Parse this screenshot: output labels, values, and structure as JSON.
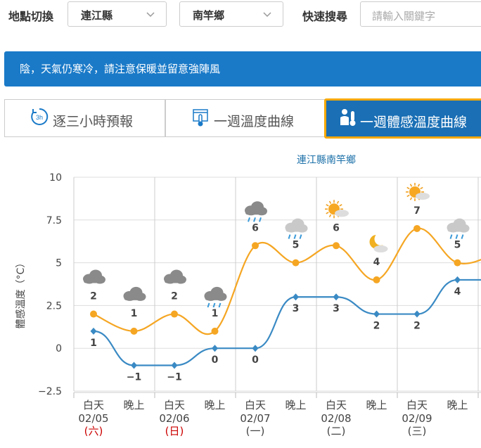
{
  "location": {
    "label": "地點切換",
    "county": "連江縣",
    "township": "南竿鄉"
  },
  "search": {
    "label": "快速搜尋",
    "placeholder": "請輸入關鍵字"
  },
  "alert": {
    "text": "陰，天氣仍寒冷，請注意保暖並留意強陣風"
  },
  "tabs": [
    {
      "label": "逐三小時預報",
      "icon": "clock-3h-icon",
      "active": false
    },
    {
      "label": "一週溫度曲線",
      "icon": "thermometer-chart-icon",
      "active": false
    },
    {
      "label": "一週體感溫度曲線",
      "icon": "person-thermometer-icon",
      "active": true
    }
  ],
  "colors": {
    "accent_blue": "#1a7ac8",
    "active_tab": "#1a6fb5",
    "active_border": "#f5a800",
    "high_line": "#f5a623",
    "low_line": "#3a8ac4",
    "holiday_red": "#cc0000"
  },
  "chart_data": {
    "type": "line",
    "title": "連江縣南竿鄉",
    "ylabel": "體感溫度（°C）",
    "ylim": [
      -2.5,
      10
    ],
    "yticks": [
      "10",
      "7.5",
      "5",
      "2.5",
      "0",
      "−2.5"
    ],
    "grid": true,
    "categories": [
      {
        "period": "白天",
        "date": "02/05",
        "weekday": "(六)",
        "holiday": true
      },
      {
        "period": "晚上"
      },
      {
        "period": "白天",
        "date": "02/06",
        "weekday": "(日)",
        "holiday": true
      },
      {
        "period": "晚上"
      },
      {
        "period": "白天",
        "date": "02/07",
        "weekday": "(一)",
        "holiday": false
      },
      {
        "period": "晚上"
      },
      {
        "period": "白天",
        "date": "02/08",
        "weekday": "(二)",
        "holiday": false
      },
      {
        "period": "晚上"
      },
      {
        "period": "白天",
        "date": "02/09",
        "weekday": "(三)",
        "holiday": false
      },
      {
        "period": "晚上"
      },
      {
        "period": ""
      }
    ],
    "series": [
      {
        "values": [
          2,
          1,
          2,
          1,
          6,
          5,
          6,
          4,
          7,
          5,
          5.6
        ]
      },
      {
        "values": [
          1,
          -1,
          -1,
          0,
          0,
          3,
          3,
          2,
          2,
          4,
          4
        ]
      }
    ],
    "labels_high": [
      "2",
      "1",
      "2",
      "1",
      "6",
      "5",
      "6",
      "4",
      "7",
      "5",
      ""
    ],
    "labels_low": [
      "1",
      "−1",
      "−1",
      "0",
      "0",
      "3",
      "3",
      "2",
      "2",
      "4",
      ""
    ],
    "weather_icons": [
      "cloudy-icon",
      "cloudy-icon",
      "cloudy-icon",
      "rain-icon",
      "cloudy-rain-icon",
      "cloud-rain-icon",
      "sun-cloud-icon",
      "moon-cloud-icon",
      "sun-cloud-icon",
      "cloud-rain-icon",
      ""
    ]
  }
}
